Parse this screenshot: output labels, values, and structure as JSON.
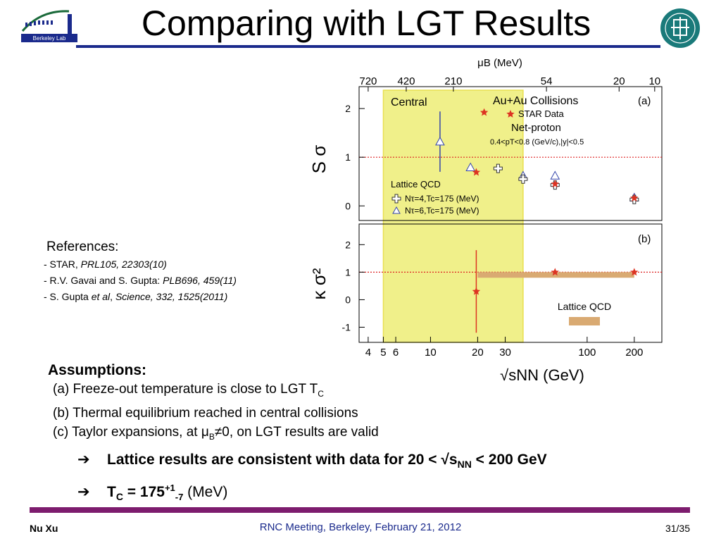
{
  "slide": {
    "title": "Comparing with LGT Results",
    "logo_left_text": "Berkeley Lab",
    "footer": {
      "author": "Nu Xu",
      "meeting": "RNC Meeting, Berkeley, February 21, 2012",
      "page": "31/35"
    }
  },
  "references": {
    "heading": "References:",
    "items": [
      {
        "plain": "- STAR, ",
        "italic": "PRL105, 22303(10)"
      },
      {
        "plain": "- R.V. Gavai and S. Gupta: ",
        "italic": "PLB696, 459(11)"
      },
      {
        "plain": "- S. Gupta ",
        "italic": "et al",
        "plain2": ", ",
        "italic2": "Science, 332, 1525(2011)"
      }
    ]
  },
  "assumptions": {
    "heading": "Assumptions:",
    "a": "(a) Freeze-out temperature is close to LGT T",
    "a_sub": "C",
    "b": "(b) Thermal equilibrium reached in central collisions",
    "c_pre": "(c) Taylor expansions, at μ",
    "c_sub": "B",
    "c_post": "≠0, on LGT results are valid"
  },
  "conclusions": {
    "arrow": "➔",
    "line1_pre": "Lattice results are consistent with data for 20 < √s",
    "line1_sub": "NN",
    "line1_post": " < 200 GeV",
    "line2_T": "T",
    "line2_Tsub": "C",
    "line2_eq": " = 175",
    "line2_sup": "+1",
    "line2_sub": "-7",
    "line2_unit": " (MeV)"
  },
  "chart_data": [
    {
      "type": "scatter",
      "panel": "(a)",
      "ylabel": "S σ",
      "top_axis_label": "μB (MeV)",
      "top_axis_ticks": [
        "720",
        "420",
        "210",
        "54",
        "20",
        "10"
      ],
      "ylim": [
        -0.3,
        2.45
      ],
      "yticks": [
        "0",
        "1",
        "2"
      ],
      "x_log_scale": true,
      "xlim": [
        3.5,
        300
      ],
      "reference_line_y": 1,
      "labels": {
        "system": "Au+Au Collisions",
        "centrality": "Central",
        "star": "STAR Data",
        "particle": "Net-proton",
        "cuts": "0.4<pT<0.8 (GeV/c),|y|<0.5",
        "lattice": "Lattice QCD",
        "nt4": "Nτ=4,Tc=175 (MeV)",
        "nt6": "Nτ=6,Tc=175 (MeV)"
      },
      "highlight_band_sqrt_snn": [
        5,
        39
      ],
      "series": [
        {
          "name": "STAR Data",
          "points": [
            {
              "x": 19.6,
              "y": 0.69
            },
            {
              "x": 22,
              "y": 1.92
            },
            {
              "x": 62.4,
              "y": 0.45
            },
            {
              "x": 200,
              "y": 0.16
            }
          ]
        },
        {
          "name": "Nτ=4,Tc=175 (MeV)",
          "points": [
            {
              "x": 27,
              "y": 0.77
            },
            {
              "x": 39,
              "y": 0.55
            },
            {
              "x": 62.4,
              "y": 0.43
            },
            {
              "x": 200,
              "y": 0.13
            }
          ]
        },
        {
          "name": "Nτ=6,Tc=175 (MeV)",
          "points": [
            {
              "x": 11.5,
              "y": 1.32,
              "err": 0.62
            },
            {
              "x": 18,
              "y": 0.79
            },
            {
              "x": 39,
              "y": 0.62
            },
            {
              "x": 62.4,
              "y": 0.62
            },
            {
              "x": 200,
              "y": 0.17
            }
          ]
        }
      ]
    },
    {
      "type": "scatter",
      "panel": "(b)",
      "ylabel": "κ σ²",
      "xlabel": "√sNN (GeV)",
      "ylim": [
        -1.55,
        2.75
      ],
      "yticks": [
        "-1",
        "0",
        "1",
        "2"
      ],
      "x_log_scale": true,
      "xlim": [
        3.5,
        300
      ],
      "xticks": [
        "4",
        "5",
        "6",
        "10",
        "20",
        "30",
        "100",
        "200"
      ],
      "reference_line_y": 1,
      "lattice_label": "Lattice QCD",
      "lattice_band": {
        "x": [
          20,
          200
        ],
        "y": 0.9
      },
      "series": [
        {
          "name": "STAR Data",
          "points": [
            {
              "x": 19.6,
              "y": 0.3,
              "err": 1.5
            },
            {
              "x": 62.4,
              "y": 1.0
            },
            {
              "x": 200,
              "y": 1.0
            }
          ]
        }
      ]
    }
  ],
  "colors": {
    "title_rule": "#1a2a8c",
    "footer_rule": "#7d1c6e",
    "star": "#dd3322",
    "band": "#f0f08a",
    "lattice": "#d9aa72",
    "dashed": "#dd2222",
    "lgt6": "#3344aa"
  }
}
